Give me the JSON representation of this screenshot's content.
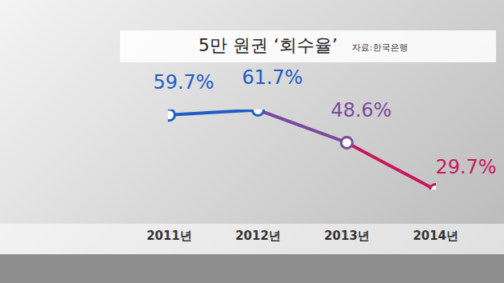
{
  "chart_data": {
    "type": "line",
    "title": "5만 원권 ‘회수율’",
    "source": "자료:한국은행",
    "categories": [
      "2011년",
      "2012년",
      "2013년",
      "2014년"
    ],
    "values": [
      59.7,
      61.7,
      48.6,
      29.7
    ],
    "value_labels": [
      "59.7%",
      "61.7%",
      "48.6%",
      "29.7%"
    ],
    "colors": [
      "#1f5cc4",
      "#1f5cc4",
      "#7b4a9e",
      "#c7175c"
    ],
    "data_labels": true,
    "tick_labels": "x",
    "marker": "circle"
  }
}
